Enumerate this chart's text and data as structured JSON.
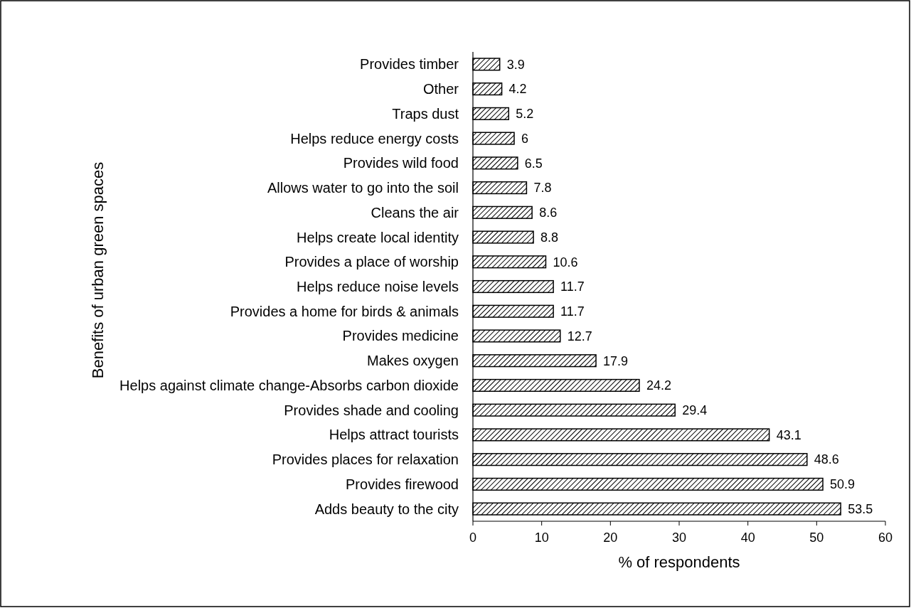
{
  "chart_data": {
    "type": "bar",
    "orientation": "horizontal",
    "xlabel": "% of respondents",
    "ylabel": "Benefits of urban green spaces",
    "categories": [
      "Provides timber",
      "Other",
      "Traps dust",
      "Helps reduce energy costs",
      "Provides wild food",
      "Allows water to go into the soil",
      "Cleans the air",
      "Helps create local identity",
      "Provides a place of worship",
      "Helps reduce noise levels",
      "Provides a home for birds & animals",
      "Provides medicine",
      "Makes oxygen",
      "Helps against climate change-Absorbs carbon dioxide",
      "Provides shade and cooling",
      "Helps attract tourists",
      "Provides places for relaxation",
      "Provides firewood",
      "Adds beauty to the city"
    ],
    "values": [
      3.9,
      4.2,
      5.2,
      6,
      6.5,
      7.8,
      8.6,
      8.8,
      10.6,
      11.7,
      11.7,
      12.7,
      17.9,
      24.2,
      29.4,
      43.1,
      48.6,
      50.9,
      53.5
    ],
    "color": "#000000",
    "data_labels": true,
    "xlim": [
      0,
      60
    ],
    "xticks": [
      0,
      10,
      20,
      30,
      40,
      50,
      60
    ],
    "grid": false
  }
}
